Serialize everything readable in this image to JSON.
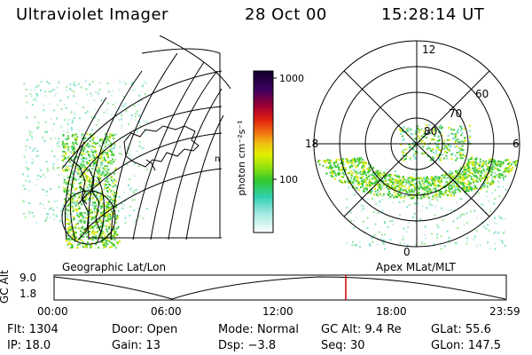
{
  "header": {
    "instrument": "Ultraviolet Imager",
    "date": "28 Oct 00",
    "time": "15:28:14 UT"
  },
  "colorbar": {
    "unit_label": "photon cm⁻²s⁻¹",
    "ticks": [
      "1000",
      "100"
    ]
  },
  "polar": {
    "lat_labels": [
      "80",
      "70",
      "60"
    ],
    "mlt_labels": [
      "12",
      "18",
      "6",
      "0"
    ]
  },
  "left_map": {
    "corner_mark": "n"
  },
  "panel_labels": {
    "left": "Geographic Lat/Lon",
    "right": "Apex MLat/MLT"
  },
  "gc_alt_plot": {
    "axis_label": "GC Alt",
    "y_ticks": [
      "9.0",
      "1.8"
    ],
    "x_ticks": [
      "00:00",
      "06:00",
      "12:00",
      "18:00",
      "23:59"
    ],
    "current_time_marker_fraction": 0.645,
    "marker_color": "#d00000"
  },
  "info": {
    "flt": {
      "label": "Flt:",
      "value": "1304"
    },
    "ip": {
      "label": "IP:",
      "value": "18.0"
    },
    "door": {
      "label": "Door:",
      "value": "Open"
    },
    "gain": {
      "label": "Gain:",
      "value": "13"
    },
    "mode": {
      "label": "Mode:",
      "value": "Normal"
    },
    "dsp": {
      "label": "Dsp:",
      "value": "−3.8"
    },
    "gcalt": {
      "label": "GC Alt:",
      "value": "9.4 Re"
    },
    "seq": {
      "label": "Seq:",
      "value": "30"
    },
    "glat": {
      "label": "GLat:",
      "value": "55.6"
    },
    "glon": {
      "label": "GLon:",
      "value": "147.5"
    }
  },
  "colors": {
    "aurora_green": "#3ec83a",
    "aurora_yellow": "#d8e80a",
    "aurora_cyan": "#80e0d0"
  }
}
